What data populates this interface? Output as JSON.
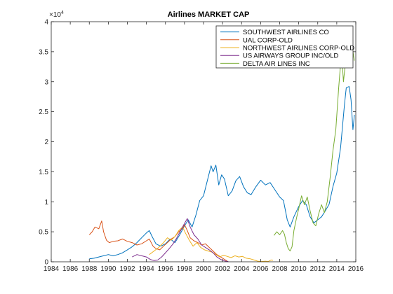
{
  "chart_data": {
    "type": "line",
    "title": "Airlines MARKET CAP",
    "xlabel": "",
    "ylabel": "",
    "xlim": [
      1984,
      2016
    ],
    "ylim": [
      0,
      40000
    ],
    "y_exponent_label": "×10",
    "y_exponent_power": "4",
    "x_ticks": [
      {
        "value": 1984,
        "label": "1984"
      },
      {
        "value": 1986,
        "label": "1986"
      },
      {
        "value": 1988,
        "label": "1988"
      },
      {
        "value": 1990,
        "label": "1990"
      },
      {
        "value": 1992,
        "label": "1992"
      },
      {
        "value": 1994,
        "label": "1994"
      },
      {
        "value": 1996,
        "label": "1996"
      },
      {
        "value": 1998,
        "label": "1998"
      },
      {
        "value": 2000,
        "label": "2000"
      },
      {
        "value": 2002,
        "label": "2002"
      },
      {
        "value": 2004,
        "label": "2004"
      },
      {
        "value": 2006,
        "label": "2006"
      },
      {
        "value": 2008,
        "label": "2008"
      },
      {
        "value": 2010,
        "label": "2010"
      },
      {
        "value": 2012,
        "label": "2012"
      },
      {
        "value": 2014,
        "label": "2014"
      },
      {
        "value": 2016,
        "label": "2016"
      }
    ],
    "y_ticks": [
      {
        "value": 0,
        "label": "0"
      },
      {
        "value": 5000,
        "label": "0.5"
      },
      {
        "value": 10000,
        "label": "1"
      },
      {
        "value": 15000,
        "label": "1.5"
      },
      {
        "value": 20000,
        "label": "2"
      },
      {
        "value": 25000,
        "label": "2.5"
      },
      {
        "value": 30000,
        "label": "3"
      },
      {
        "value": 35000,
        "label": "3.5"
      },
      {
        "value": 40000,
        "label": "4"
      }
    ],
    "grid": false,
    "legend_position": "top-right",
    "series": [
      {
        "name": "SOUTHWEST AIRLINES CO",
        "color": "#0072BD",
        "points": [
          [
            1988.0,
            500
          ],
          [
            1988.5,
            600
          ],
          [
            1989.0,
            800
          ],
          [
            1989.5,
            1000
          ],
          [
            1990.0,
            1200
          ],
          [
            1990.5,
            1000
          ],
          [
            1991.0,
            1200
          ],
          [
            1991.5,
            1500
          ],
          [
            1992.0,
            2000
          ],
          [
            1992.5,
            2500
          ],
          [
            1993.0,
            3200
          ],
          [
            1993.5,
            4000
          ],
          [
            1994.0,
            4800
          ],
          [
            1994.3,
            5200
          ],
          [
            1994.6,
            4200
          ],
          [
            1995.0,
            3000
          ],
          [
            1995.5,
            2600
          ],
          [
            1996.0,
            3000
          ],
          [
            1996.5,
            3800
          ],
          [
            1997.0,
            3200
          ],
          [
            1997.5,
            4500
          ],
          [
            1998.0,
            6000
          ],
          [
            1998.4,
            7000
          ],
          [
            1998.8,
            5800
          ],
          [
            1999.2,
            7800
          ],
          [
            1999.6,
            10200
          ],
          [
            2000.0,
            11000
          ],
          [
            2000.4,
            13500
          ],
          [
            2000.8,
            16000
          ],
          [
            2001.0,
            15000
          ],
          [
            2001.3,
            16100
          ],
          [
            2001.6,
            12800
          ],
          [
            2001.9,
            14500
          ],
          [
            2002.2,
            13800
          ],
          [
            2002.6,
            11000
          ],
          [
            2003.0,
            11800
          ],
          [
            2003.4,
            13500
          ],
          [
            2003.8,
            14200
          ],
          [
            2004.2,
            12500
          ],
          [
            2004.6,
            11500
          ],
          [
            2005.0,
            11200
          ],
          [
            2005.5,
            12500
          ],
          [
            2006.0,
            13600
          ],
          [
            2006.5,
            12800
          ],
          [
            2007.0,
            13200
          ],
          [
            2007.5,
            12000
          ],
          [
            2008.0,
            10800
          ],
          [
            2008.4,
            10200
          ],
          [
            2008.8,
            7000
          ],
          [
            2009.1,
            5800
          ],
          [
            2009.5,
            7500
          ],
          [
            2010.0,
            9200
          ],
          [
            2010.4,
            10200
          ],
          [
            2010.8,
            9500
          ],
          [
            2011.2,
            7500
          ],
          [
            2011.6,
            6500
          ],
          [
            2012.0,
            7000
          ],
          [
            2012.4,
            7500
          ],
          [
            2012.8,
            8500
          ],
          [
            2013.2,
            9600
          ],
          [
            2013.6,
            12500
          ],
          [
            2014.0,
            14800
          ],
          [
            2014.4,
            19000
          ],
          [
            2014.8,
            26000
          ],
          [
            2015.0,
            29000
          ],
          [
            2015.3,
            29200
          ],
          [
            2015.5,
            27000
          ],
          [
            2015.7,
            22000
          ],
          [
            2015.85,
            24500
          ]
        ]
      },
      {
        "name": "UAL CORP-OLD",
        "color": "#D95319",
        "points": [
          [
            1988.0,
            4500
          ],
          [
            1988.3,
            5000
          ],
          [
            1988.6,
            5800
          ],
          [
            1989.0,
            5500
          ],
          [
            1989.3,
            6800
          ],
          [
            1989.5,
            5000
          ],
          [
            1989.8,
            3600
          ],
          [
            1990.1,
            3200
          ],
          [
            1990.5,
            3400
          ],
          [
            1991.0,
            3500
          ],
          [
            1991.5,
            3800
          ],
          [
            1992.0,
            3400
          ],
          [
            1992.5,
            3200
          ],
          [
            1993.0,
            2800
          ],
          [
            1993.5,
            3000
          ],
          [
            1994.0,
            3500
          ],
          [
            1994.3,
            3800
          ],
          [
            1994.7,
            2600
          ],
          [
            1995.0,
            2200
          ],
          [
            1995.4,
            2000
          ],
          [
            1995.8,
            2600
          ],
          [
            1996.2,
            3200
          ],
          [
            1996.6,
            3800
          ],
          [
            1997.0,
            4200
          ],
          [
            1997.4,
            5000
          ],
          [
            1997.8,
            5600
          ],
          [
            1998.0,
            6200
          ],
          [
            1998.3,
            5200
          ],
          [
            1998.6,
            4000
          ],
          [
            1999.0,
            3500
          ],
          [
            1999.4,
            3200
          ],
          [
            1999.8,
            2800
          ],
          [
            2000.2,
            3000
          ],
          [
            2000.6,
            2400
          ],
          [
            2001.0,
            1800
          ],
          [
            2001.4,
            1200
          ],
          [
            2001.8,
            800
          ],
          [
            2002.2,
            400
          ],
          [
            2002.5,
            100
          ]
        ]
      },
      {
        "name": "NORTHWEST AIRLINES CORP-OLD",
        "color": "#EDB120",
        "points": [
          [
            1994.3,
            1200
          ],
          [
            1994.8,
            1800
          ],
          [
            1995.3,
            2400
          ],
          [
            1995.8,
            3200
          ],
          [
            1996.2,
            4000
          ],
          [
            1996.6,
            3600
          ],
          [
            1997.0,
            4200
          ],
          [
            1997.4,
            5200
          ],
          [
            1997.8,
            5800
          ],
          [
            1998.1,
            4800
          ],
          [
            1998.5,
            3600
          ],
          [
            1998.9,
            2600
          ],
          [
            1999.3,
            3200
          ],
          [
            1999.7,
            2400
          ],
          [
            2000.1,
            2000
          ],
          [
            2000.5,
            1800
          ],
          [
            2000.9,
            1600
          ],
          [
            2001.3,
            1200
          ],
          [
            2001.7,
            800
          ],
          [
            2002.1,
            1100
          ],
          [
            2002.5,
            900
          ],
          [
            2002.9,
            700
          ],
          [
            2003.3,
            1000
          ],
          [
            2003.7,
            800
          ],
          [
            2004.1,
            900
          ],
          [
            2004.5,
            600
          ],
          [
            2004.9,
            500
          ],
          [
            2005.3,
            300
          ],
          [
            2005.7,
            100
          ],
          [
            2006.1,
            50
          ],
          [
            2006.5,
            100
          ],
          [
            2006.8,
            50
          ],
          [
            2007.1,
            300
          ],
          [
            2007.3,
            250
          ]
        ]
      },
      {
        "name": "US AIRWAYS GROUP INC/OLD",
        "color": "#7E2F8E",
        "points": [
          [
            1992.5,
            800
          ],
          [
            1993.0,
            1200
          ],
          [
            1993.5,
            1000
          ],
          [
            1994.0,
            800
          ],
          [
            1994.4,
            400
          ],
          [
            1994.8,
            200
          ],
          [
            1995.2,
            300
          ],
          [
            1995.6,
            800
          ],
          [
            1996.0,
            1500
          ],
          [
            1996.4,
            2200
          ],
          [
            1996.8,
            3000
          ],
          [
            1997.2,
            4000
          ],
          [
            1997.6,
            5200
          ],
          [
            1998.0,
            6400
          ],
          [
            1998.3,
            7200
          ],
          [
            1998.6,
            5800
          ],
          [
            1999.0,
            4500
          ],
          [
            1999.4,
            3800
          ],
          [
            1999.8,
            2800
          ],
          [
            2000.2,
            2400
          ],
          [
            2000.6,
            2000
          ],
          [
            2001.0,
            1500
          ],
          [
            2001.4,
            800
          ],
          [
            2001.8,
            400
          ],
          [
            2002.2,
            150
          ],
          [
            2002.6,
            50
          ]
        ]
      },
      {
        "name": "DELTA AIR LINES INC",
        "color": "#77AC30",
        "points": [
          [
            2007.4,
            4400
          ],
          [
            2007.7,
            5000
          ],
          [
            2008.0,
            4500
          ],
          [
            2008.3,
            5200
          ],
          [
            2008.5,
            4600
          ],
          [
            2008.7,
            3200
          ],
          [
            2008.9,
            2200
          ],
          [
            2009.1,
            1800
          ],
          [
            2009.3,
            2500
          ],
          [
            2009.5,
            5200
          ],
          [
            2009.8,
            7500
          ],
          [
            2010.0,
            8800
          ],
          [
            2010.3,
            11000
          ],
          [
            2010.6,
            9500
          ],
          [
            2010.9,
            10800
          ],
          [
            2011.2,
            8500
          ],
          [
            2011.5,
            6500
          ],
          [
            2011.8,
            6000
          ],
          [
            2012.1,
            8000
          ],
          [
            2012.4,
            9500
          ],
          [
            2012.7,
            8200
          ],
          [
            2013.0,
            10000
          ],
          [
            2013.3,
            14000
          ],
          [
            2013.6,
            18500
          ],
          [
            2013.9,
            22000
          ],
          [
            2014.2,
            29000
          ],
          [
            2014.5,
            35000
          ],
          [
            2014.7,
            30000
          ],
          [
            2014.9,
            33000
          ],
          [
            2015.1,
            39000
          ],
          [
            2015.3,
            36000
          ],
          [
            2015.5,
            38000
          ],
          [
            2015.7,
            35000
          ],
          [
            2015.85,
            33500
          ]
        ]
      }
    ]
  }
}
